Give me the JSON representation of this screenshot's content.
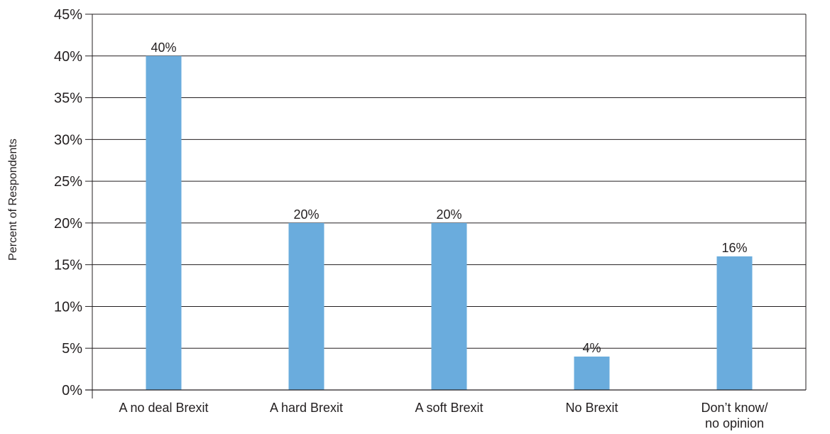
{
  "chart_data": {
    "type": "bar",
    "title": "",
    "xlabel": "",
    "ylabel": "Percent of Respondents",
    "ylim": [
      0,
      45
    ],
    "y_tick_step": 5,
    "y_tick_labels": [
      "0%",
      "5%",
      "10%",
      "15%",
      "20%",
      "25%",
      "30%",
      "35%",
      "40%",
      "45%"
    ],
    "grid": true,
    "categories": [
      [
        "A no deal Brexit"
      ],
      [
        "A hard Brexit"
      ],
      [
        "A soft Brexit"
      ],
      [
        "No Brexit"
      ],
      [
        "Don’t know/",
        "no opinion"
      ]
    ],
    "values": [
      40,
      20,
      20,
      4,
      16
    ],
    "data_labels": [
      "40%",
      "20%",
      "20%",
      "4%",
      "16%"
    ],
    "colors": {
      "bar": "#6aacdd",
      "axis": "#231f20",
      "grid": "#231f20",
      "text": "#231f20"
    }
  }
}
